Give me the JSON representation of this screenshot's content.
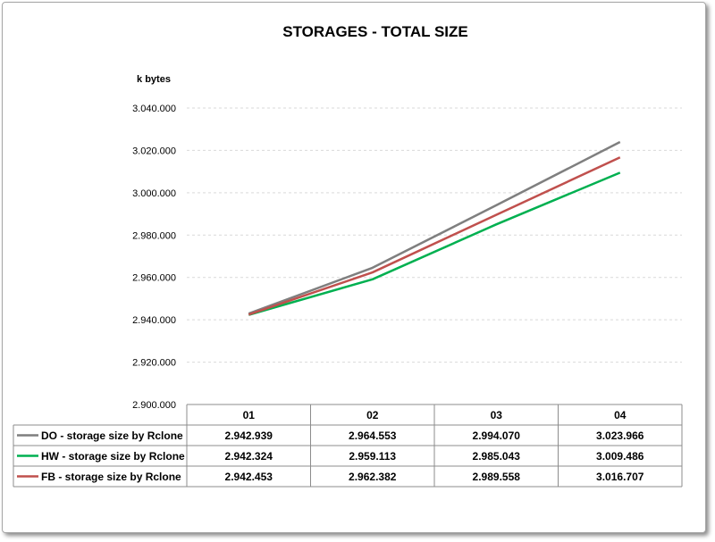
{
  "chart_data": {
    "type": "line",
    "title": "STORAGES - TOTAL SIZE",
    "ylabel": "k bytes",
    "xlabel": "",
    "categories": [
      "01",
      "02",
      "03",
      "04"
    ],
    "ylim": [
      2900000,
      3040000
    ],
    "yticks": [
      2900000,
      2920000,
      2940000,
      2960000,
      2980000,
      3000000,
      3020000,
      3040000
    ],
    "ytick_labels": [
      "2.900.000",
      "2.920.000",
      "2.940.000",
      "2.960.000",
      "2.980.000",
      "3.000.000",
      "3.020.000",
      "3.040.000"
    ],
    "grid": true,
    "legend": "data-table",
    "series": [
      {
        "name": "DO - storage size by Rclone",
        "color": "#7f7f7f",
        "values": [
          2942939,
          2964553,
          2994070,
          3023966
        ],
        "labels": [
          "2.942.939",
          "2.964.553",
          "2.994.070",
          "3.023.966"
        ]
      },
      {
        "name": "HW - storage size by Rclone",
        "color": "#00b050",
        "values": [
          2942324,
          2959113,
          2985043,
          3009486
        ],
        "labels": [
          "2.942.324",
          "2.959.113",
          "2.985.043",
          "3.009.486"
        ]
      },
      {
        "name": "FB - storage size by Rclone",
        "color": "#c0504d",
        "values": [
          2942453,
          2962382,
          2989558,
          3016707
        ],
        "labels": [
          "2.942.453",
          "2.962.382",
          "2.989.558",
          "3.016.707"
        ]
      }
    ]
  }
}
